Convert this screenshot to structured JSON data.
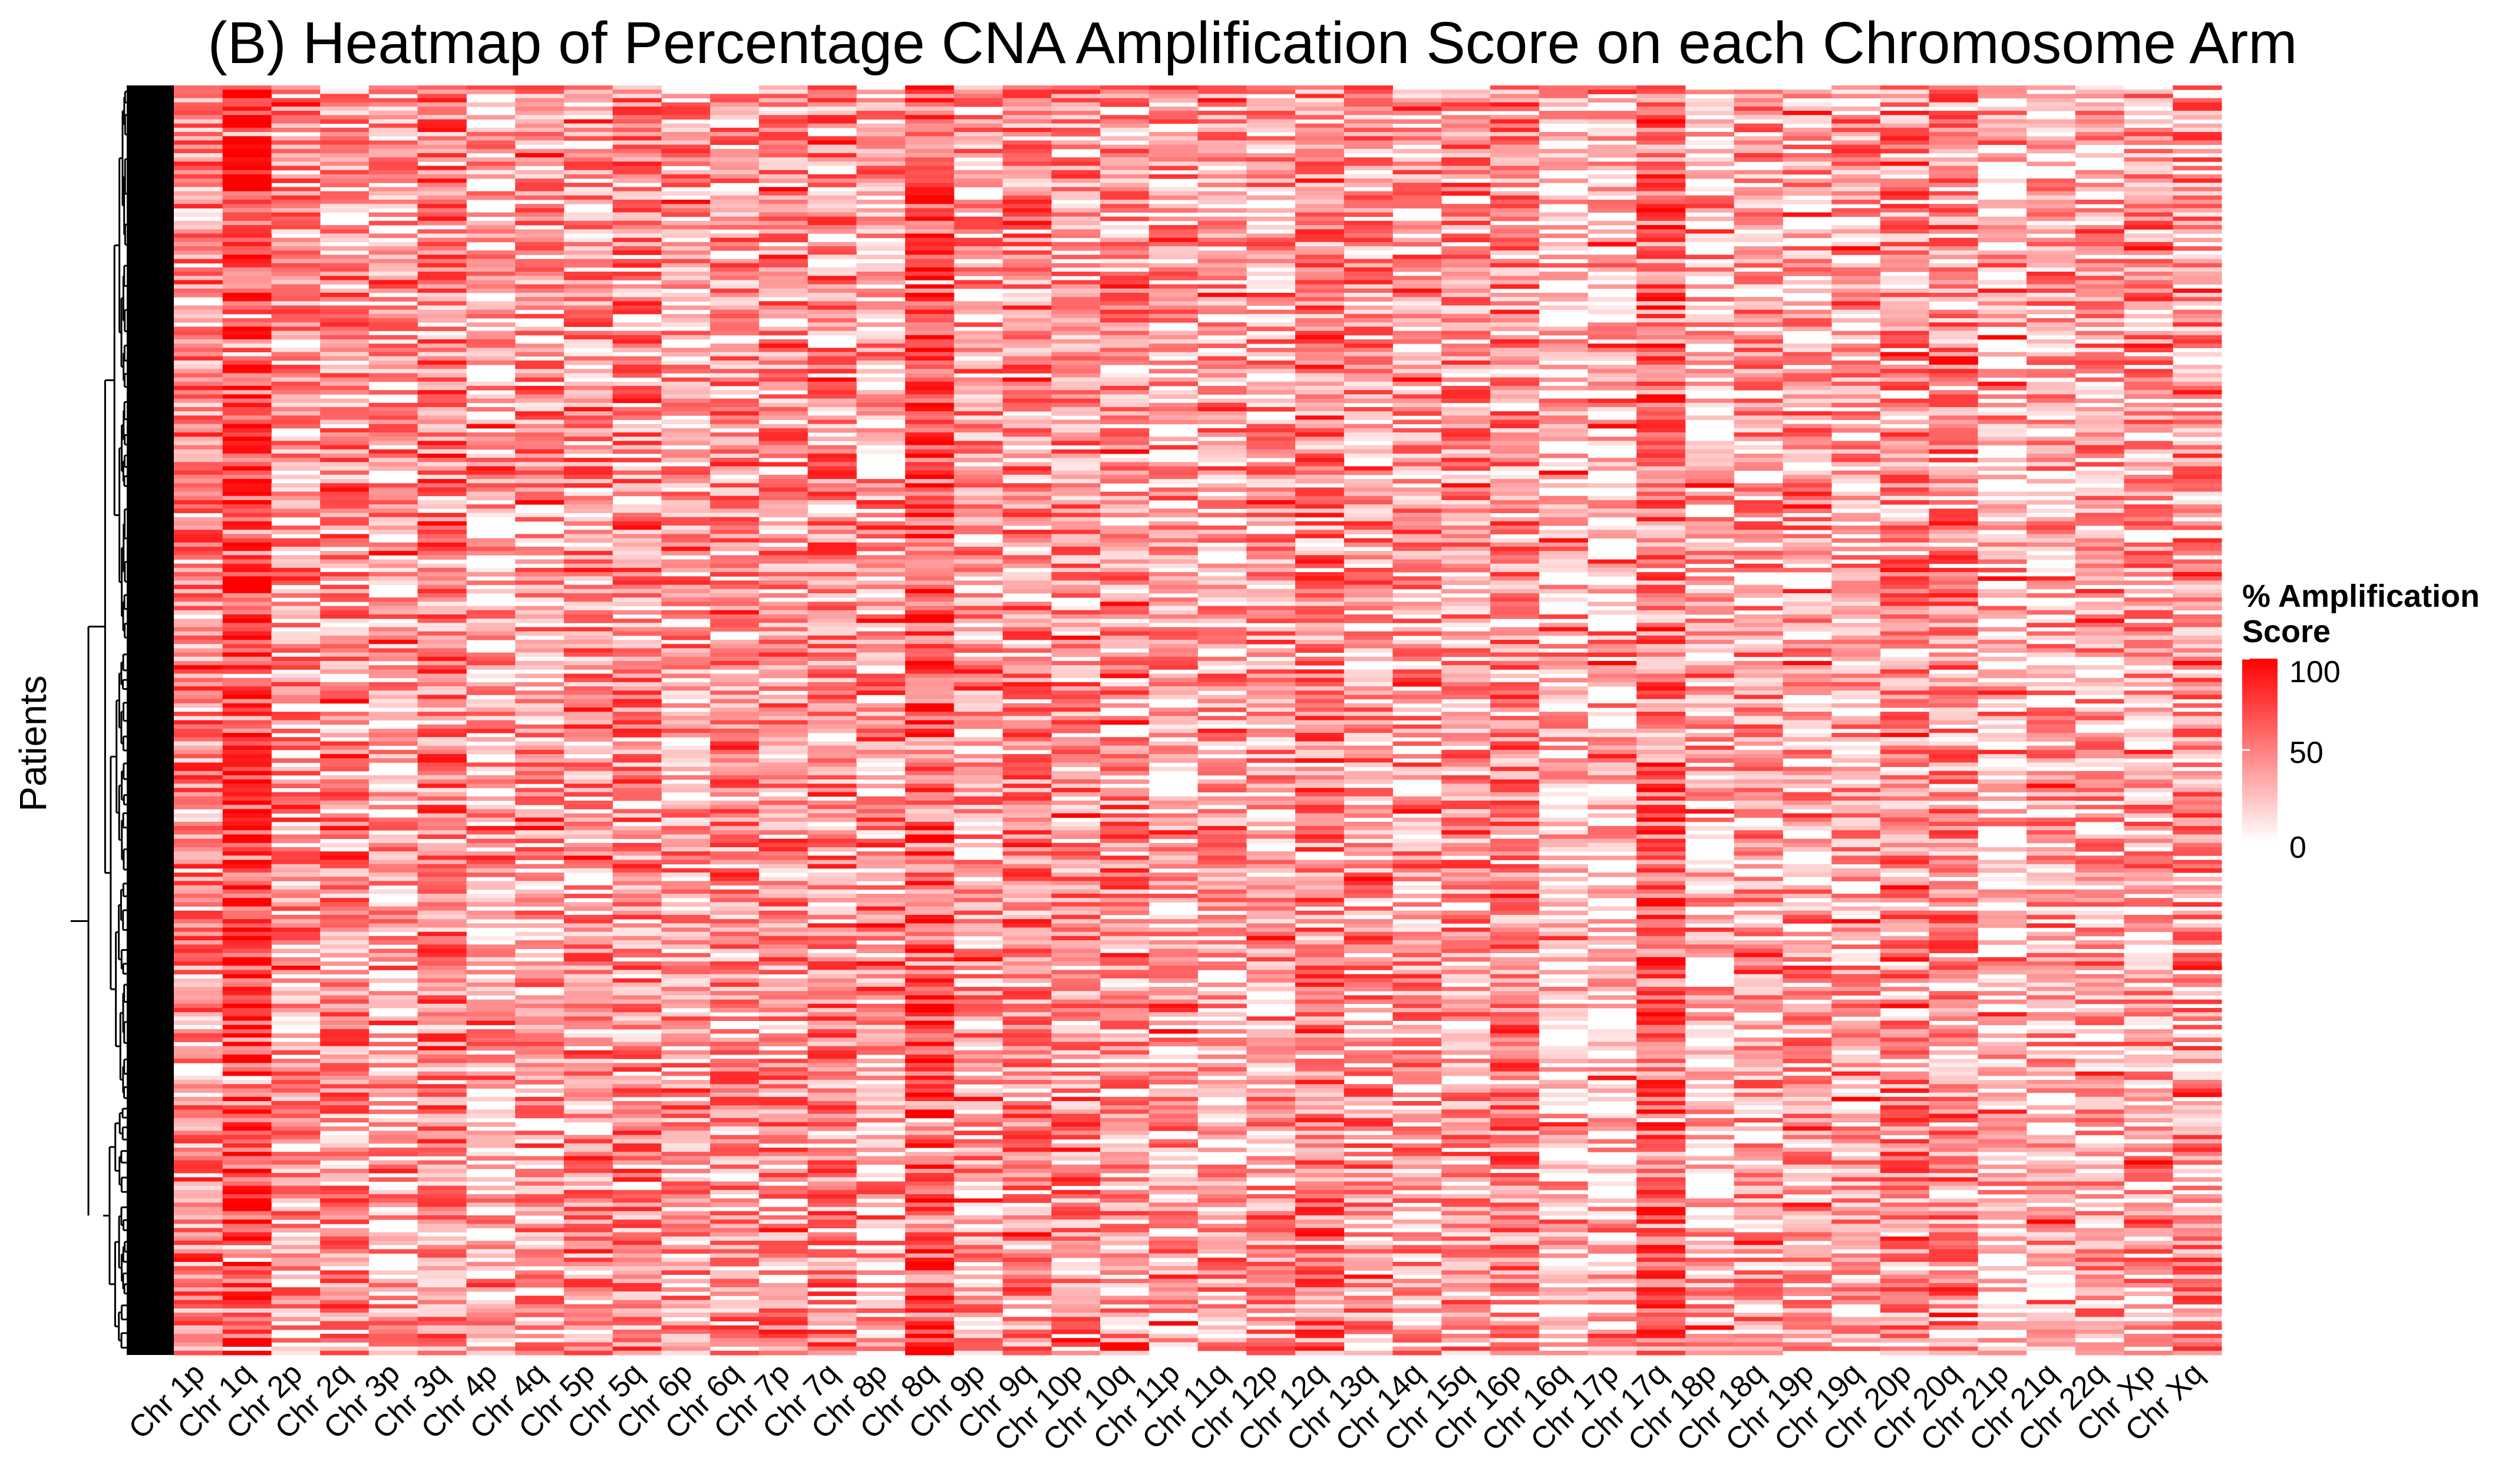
{
  "chart_data": {
    "type": "heatmap",
    "title": "(B) Heatmap of Percentage CNA Amplification Score on each Chromosome Arm",
    "ylabel": "Patients",
    "columns": [
      "Chr 1p",
      "Chr 1q",
      "Chr 2p",
      "Chr 2q",
      "Chr 3p",
      "Chr 3q",
      "Chr 4p",
      "Chr 4q",
      "Chr 5p",
      "Chr 5q",
      "Chr 6p",
      "Chr 6q",
      "Chr 7p",
      "Chr 7q",
      "Chr 8p",
      "Chr 8q",
      "Chr 9p",
      "Chr 9q",
      "Chr 10p",
      "Chr 10q",
      "Chr 11p",
      "Chr 11q",
      "Chr 12p",
      "Chr 12q",
      "Chr 13q",
      "Chr 14q",
      "Chr 15q",
      "Chr 16p",
      "Chr 16q",
      "Chr 17p",
      "Chr 17q",
      "Chr 18p",
      "Chr 18q",
      "Chr 19p",
      "Chr 19q",
      "Chr 20p",
      "Chr 20q",
      "Chr 21p",
      "Chr 21q",
      "Chr 22q",
      "Chr Xp",
      "Chr Xq"
    ],
    "column_mean_score": [
      45,
      80,
      35,
      40,
      30,
      50,
      25,
      35,
      40,
      45,
      35,
      40,
      40,
      45,
      30,
      70,
      35,
      45,
      40,
      35,
      30,
      30,
      35,
      50,
      40,
      35,
      40,
      45,
      15,
      15,
      60,
      25,
      35,
      30,
      30,
      40,
      45,
      10,
      30,
      30,
      35,
      40
    ],
    "value_range": [
      0,
      100
    ],
    "color_scale": {
      "low": "#ffffff",
      "high": "#ff0000"
    },
    "legend": {
      "title_line1": "% Amplification",
      "title_line2": "Score",
      "ticks": [
        "100",
        "50",
        "0"
      ],
      "position": "right"
    },
    "dendrogram": "left"
  }
}
